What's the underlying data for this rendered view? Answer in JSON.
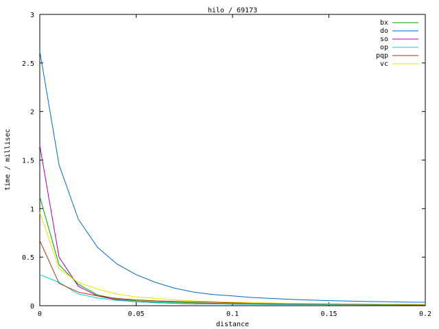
{
  "chart_data": {
    "type": "line",
    "title": "hilo / 69173",
    "xlabel": "distance",
    "ylabel": "time / millisec",
    "xlim": [
      0,
      0.2
    ],
    "ylim": [
      0,
      3
    ],
    "x_ticks": [
      "0",
      "0.05",
      "0.1",
      "0.15",
      "0.2"
    ],
    "y_ticks": [
      "0",
      "0.5",
      "1",
      "1.5",
      "2",
      "2.5",
      "3"
    ],
    "legend_position": "top-right",
    "grid": false,
    "x": [
      0,
      0.01,
      0.02,
      0.03,
      0.04,
      0.05,
      0.06,
      0.07,
      0.08,
      0.09,
      0.1,
      0.11,
      0.12,
      0.13,
      0.14,
      0.15,
      0.16,
      0.17,
      0.18,
      0.19,
      0.2
    ],
    "series": [
      {
        "name": "bx",
        "color": "#00a000",
        "values": [
          1.12,
          0.42,
          0.22,
          0.11,
          0.07,
          0.05,
          0.04,
          0.035,
          0.03,
          0.025,
          0.022,
          0.02,
          0.018,
          0.016,
          0.015,
          0.014,
          0.013,
          0.012,
          0.011,
          0.01,
          0.01
        ]
      },
      {
        "name": "do",
        "color": "#0066cc",
        "values": [
          2.62,
          1.45,
          0.89,
          0.6,
          0.43,
          0.32,
          0.24,
          0.18,
          0.14,
          0.115,
          0.1,
          0.085,
          0.075,
          0.065,
          0.058,
          0.052,
          0.047,
          0.043,
          0.04,
          0.037,
          0.035
        ]
      },
      {
        "name": "so",
        "color": "#a000a0",
        "values": [
          1.65,
          0.5,
          0.2,
          0.1,
          0.06,
          0.04,
          0.03,
          0.025,
          0.02,
          0.018,
          0.016,
          0.014,
          0.013,
          0.012,
          0.011,
          0.01,
          0.01,
          0.009,
          0.009,
          0.008,
          0.008
        ]
      },
      {
        "name": "op",
        "color": "#00cccc",
        "values": [
          0.32,
          0.24,
          0.12,
          0.08,
          0.055,
          0.04,
          0.032,
          0.026,
          0.022,
          0.019,
          0.017,
          0.015,
          0.014,
          0.013,
          0.012,
          0.011,
          0.011,
          0.01,
          0.01,
          0.01,
          0.01
        ]
      },
      {
        "name": "pqp",
        "color": "#b03000",
        "values": [
          0.67,
          0.23,
          0.14,
          0.1,
          0.075,
          0.06,
          0.05,
          0.045,
          0.04,
          0.035,
          0.03,
          0.028,
          0.025,
          0.022,
          0.02,
          0.018,
          0.016,
          0.015,
          0.014,
          0.013,
          0.012
        ]
      },
      {
        "name": "vc",
        "color": "#e6e600",
        "values": [
          0.96,
          0.38,
          0.24,
          0.17,
          0.12,
          0.09,
          0.075,
          0.06,
          0.05,
          0.043,
          0.037,
          0.032,
          0.028,
          0.025,
          0.023,
          0.021,
          0.019,
          0.018,
          0.017,
          0.016,
          0.015
        ]
      }
    ]
  }
}
